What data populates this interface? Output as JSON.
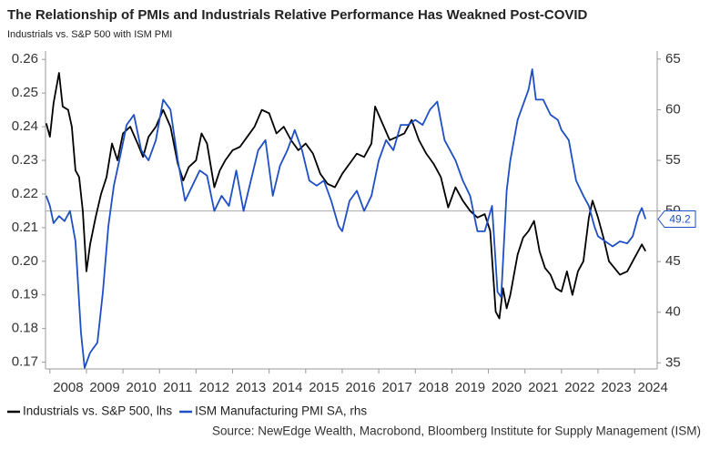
{
  "chart_data": {
    "type": "line",
    "title": "The Relationship of PMIs and Industrials Relative Performance Has Weakned Post-COVID",
    "subtitle": "Industrials vs. S&P 500 with ISM PMI",
    "source": "Source: NewEdge Wealth, Macrobond, Bloomberg Institute for Supply Management (ISM)",
    "xlim": [
      2007.88,
      2024.62
    ],
    "xticks": [
      {
        "value": 2008,
        "label": "2008"
      },
      {
        "value": 2009,
        "label": "2009"
      },
      {
        "value": 2010,
        "label": "2010"
      },
      {
        "value": 2011,
        "label": "2011"
      },
      {
        "value": 2012,
        "label": "2012"
      },
      {
        "value": 2013,
        "label": "2013"
      },
      {
        "value": 2014,
        "label": "2014"
      },
      {
        "value": 2015,
        "label": "2015"
      },
      {
        "value": 2016,
        "label": "2016"
      },
      {
        "value": 2017,
        "label": "2017"
      },
      {
        "value": 2018,
        "label": "2018"
      },
      {
        "value": 2019,
        "label": "2019"
      },
      {
        "value": 2020,
        "label": "2020"
      },
      {
        "value": 2021,
        "label": "2021"
      },
      {
        "value": 2022,
        "label": "2022"
      },
      {
        "value": 2023,
        "label": "2023"
      },
      {
        "value": 2024,
        "label": "2024"
      }
    ],
    "ylim": [
      0.168,
      0.2625
    ],
    "yticks": [
      0.17,
      {
        "value": 0.18,
        "label": "0.18"
      },
      0.19,
      {
        "value": 0.2,
        "label": "0.20"
      },
      0.21,
      0.22,
      0.23,
      0.24,
      0.25,
      0.26
    ],
    "y2lim": [
      34.4,
      65.8
    ],
    "y2ticks": [
      35,
      40,
      45,
      50,
      55,
      60,
      65
    ],
    "y2_refline": 50,
    "series": [
      {
        "name": "Industrials vs. S&P 500, lhs",
        "color": "#000000",
        "axis": "y",
        "x": [
          2007.9,
          2008.0,
          2008.1,
          2008.2,
          2008.25,
          2008.35,
          2008.5,
          2008.6,
          2008.7,
          2008.8,
          2008.9,
          2009.0,
          2009.1,
          2009.25,
          2009.4,
          2009.55,
          2009.7,
          2009.85,
          2010.0,
          2010.2,
          2010.4,
          2010.55,
          2010.7,
          2010.9,
          2011.1,
          2011.3,
          2011.5,
          2011.65,
          2011.8,
          2012.0,
          2012.15,
          2012.3,
          2012.5,
          2012.65,
          2012.8,
          2013.0,
          2013.2,
          2013.4,
          2013.6,
          2013.8,
          2014.0,
          2014.2,
          2014.4,
          2014.6,
          2014.8,
          2015.0,
          2015.2,
          2015.4,
          2015.6,
          2015.8,
          2016.0,
          2016.2,
          2016.4,
          2016.6,
          2016.8,
          2016.9,
          2017.1,
          2017.3,
          2017.5,
          2017.7,
          2017.9,
          2018.1,
          2018.3,
          2018.5,
          2018.7,
          2018.9,
          2019.1,
          2019.3,
          2019.5,
          2019.7,
          2019.9,
          2020.05,
          2020.2,
          2020.3,
          2020.4,
          2020.5,
          2020.6,
          2020.8,
          2020.95,
          2021.1,
          2021.25,
          2021.4,
          2021.55,
          2021.7,
          2021.85,
          2022.0,
          2022.15,
          2022.3,
          2022.45,
          2022.6,
          2022.75,
          2022.85,
          2023.0,
          2023.15,
          2023.3,
          2023.45,
          2023.6,
          2023.8,
          2023.95,
          2024.1,
          2024.2,
          2024.3
        ],
        "values": [
          0.241,
          0.237,
          0.247,
          0.253,
          0.256,
          0.246,
          0.245,
          0.24,
          0.227,
          0.225,
          0.215,
          0.197,
          0.205,
          0.213,
          0.22,
          0.225,
          0.235,
          0.23,
          0.238,
          0.24,
          0.235,
          0.231,
          0.237,
          0.24,
          0.245,
          0.24,
          0.229,
          0.224,
          0.228,
          0.23,
          0.238,
          0.235,
          0.222,
          0.227,
          0.23,
          0.233,
          0.234,
          0.237,
          0.24,
          0.245,
          0.244,
          0.238,
          0.24,
          0.236,
          0.233,
          0.235,
          0.232,
          0.226,
          0.223,
          0.222,
          0.226,
          0.229,
          0.232,
          0.231,
          0.235,
          0.246,
          0.241,
          0.236,
          0.237,
          0.238,
          0.242,
          0.236,
          0.232,
          0.229,
          0.225,
          0.216,
          0.222,
          0.218,
          0.215,
          0.213,
          0.214,
          0.209,
          0.185,
          0.183,
          0.192,
          0.186,
          0.19,
          0.202,
          0.207,
          0.209,
          0.212,
          0.203,
          0.198,
          0.196,
          0.192,
          0.191,
          0.197,
          0.19,
          0.197,
          0.2,
          0.213,
          0.218,
          0.213,
          0.207,
          0.2,
          0.198,
          0.196,
          0.197,
          0.2,
          0.203,
          0.205,
          0.203
        ]
      },
      {
        "name": "ISM Manufacturing PMI SA, rhs",
        "color": "#1f4fc4",
        "axis": "y2",
        "x": [
          2007.9,
          2008.0,
          2008.1,
          2008.25,
          2008.4,
          2008.55,
          2008.7,
          2008.85,
          2008.95,
          2009.1,
          2009.3,
          2009.45,
          2009.6,
          2009.75,
          2009.9,
          2010.1,
          2010.3,
          2010.5,
          2010.7,
          2010.9,
          2011.1,
          2011.3,
          2011.5,
          2011.7,
          2011.9,
          2012.1,
          2012.3,
          2012.5,
          2012.7,
          2012.9,
          2013.1,
          2013.3,
          2013.5,
          2013.7,
          2013.9,
          2014.1,
          2014.3,
          2014.5,
          2014.7,
          2014.9,
          2015.1,
          2015.3,
          2015.5,
          2015.7,
          2015.9,
          2016.0,
          2016.2,
          2016.4,
          2016.6,
          2016.8,
          2017.0,
          2017.2,
          2017.4,
          2017.6,
          2017.8,
          2018.0,
          2018.2,
          2018.4,
          2018.6,
          2018.8,
          2018.95,
          2019.1,
          2019.3,
          2019.5,
          2019.7,
          2019.9,
          2020.1,
          2020.25,
          2020.35,
          2020.5,
          2020.6,
          2020.8,
          2020.95,
          2021.1,
          2021.2,
          2021.3,
          2021.5,
          2021.7,
          2021.9,
          2022.0,
          2022.2,
          2022.4,
          2022.6,
          2022.75,
          2022.9,
          2023.0,
          2023.2,
          2023.4,
          2023.6,
          2023.8,
          2023.95,
          2024.1,
          2024.2,
          2024.3
        ],
        "values": [
          51.5,
          50.5,
          48.8,
          49.5,
          49,
          50,
          47,
          38,
          34.5,
          36,
          37,
          42,
          48.5,
          52.5,
          55,
          58.5,
          59.5,
          56,
          55,
          57,
          61,
          60,
          55,
          51,
          52.5,
          54,
          53.5,
          50,
          51.5,
          50.5,
          54,
          50,
          53,
          56,
          57,
          51.5,
          54.5,
          56,
          58,
          56,
          53,
          52.5,
          53,
          51,
          48.5,
          48,
          51,
          52,
          50,
          51.5,
          55,
          57,
          56,
          58.5,
          58.5,
          59,
          58.5,
          60,
          60.8,
          57,
          56,
          55,
          53,
          51.5,
          48,
          48,
          50.5,
          42,
          41.5,
          52,
          55,
          59,
          60.5,
          62,
          64,
          61,
          61,
          59.5,
          59,
          58,
          57,
          53,
          51.5,
          50.5,
          48.5,
          47.5,
          47,
          46.5,
          47,
          46.8,
          47.5,
          49.5,
          50.3,
          49.2
        ]
      }
    ]
  }
}
